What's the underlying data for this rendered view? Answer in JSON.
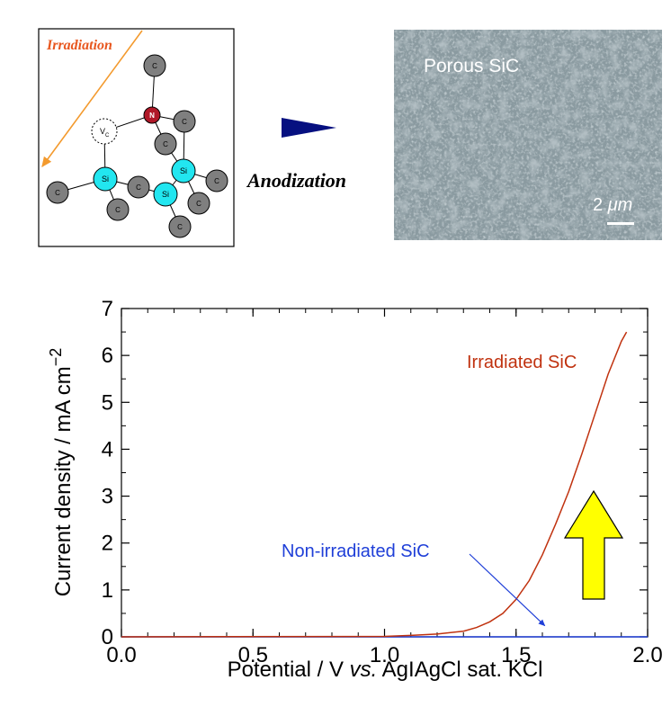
{
  "schematic": {
    "irradiation_label": "Irradiation",
    "vacancy_label": "V",
    "vacancy_sub": "C",
    "nitrogen_label": "N",
    "silicon_label": "Si",
    "carbon_label": "C",
    "colors": {
      "irradiation": "#e8571f",
      "arrow_line": "#f39a2e",
      "nitrogen": "#b01828",
      "silicon": "#22e6f0",
      "carbon": "#7f7f7f"
    }
  },
  "process": {
    "label": "Anodization",
    "arrow_color": "#061080"
  },
  "micrograph": {
    "title": "Porous SiC",
    "scalebar_value": "2",
    "scalebar_unit": "μm",
    "background_color": "#8a9aa0"
  },
  "chart_data": {
    "type": "line",
    "title": "",
    "xlabel_parts": [
      "Potential / V ",
      "vs.",
      " AgIAgCl sat. KCl"
    ],
    "ylabel": "Current density / mA cm",
    "ylabel_superscript": "−2",
    "xlim": [
      0.0,
      2.0
    ],
    "ylim": [
      0,
      7
    ],
    "x_ticks": [
      "0.0",
      "0.5",
      "1.0",
      "1.5",
      "2.0"
    ],
    "y_ticks": [
      "0",
      "1",
      "2",
      "3",
      "4",
      "5",
      "6",
      "7"
    ],
    "grid": false,
    "series": [
      {
        "name": "Irradiated SiC",
        "color": "#c0320f",
        "x": [
          0.0,
          1.0,
          1.1,
          1.2,
          1.3,
          1.35,
          1.4,
          1.45,
          1.5,
          1.55,
          1.6,
          1.65,
          1.7,
          1.75,
          1.8,
          1.85,
          1.9,
          1.92
        ],
        "y": [
          0.0,
          0.01,
          0.03,
          0.06,
          0.12,
          0.2,
          0.32,
          0.5,
          0.8,
          1.2,
          1.75,
          2.4,
          3.1,
          3.9,
          4.75,
          5.6,
          6.3,
          6.5
        ]
      },
      {
        "name": "Non-irradiated SiC",
        "color": "#1f3fd8",
        "x": [
          0.0,
          0.5,
          1.0,
          1.5,
          2.0
        ],
        "y": [
          0.0,
          0.0,
          0.0,
          0.0,
          0.0
        ]
      }
    ],
    "annotations": [
      {
        "text": "Irradiated SiC",
        "series": 0
      },
      {
        "text": "Non-irradiated SiC",
        "series": 1,
        "arrow_to": [
          1.65,
          0.2
        ]
      }
    ],
    "indicator_color": "#ffff00"
  }
}
